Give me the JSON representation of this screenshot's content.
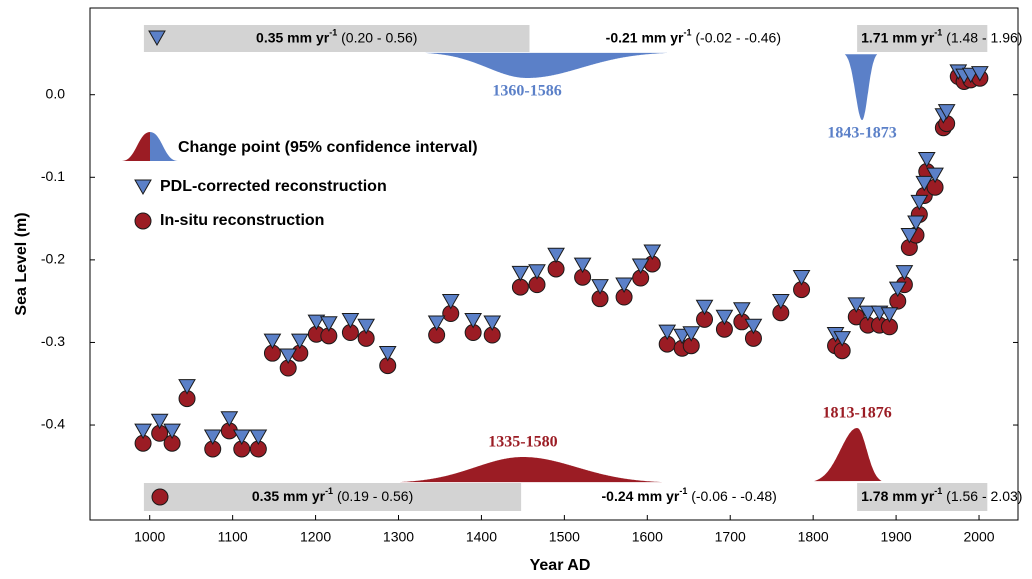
{
  "chart_data": {
    "type": "scatter",
    "xlabel": "Year AD",
    "ylabel": "Sea Level (m)",
    "xlim": [
      928,
      2047
    ],
    "ylim": [
      -0.515,
      0.105
    ],
    "xticks": [
      1000,
      1100,
      1200,
      1300,
      1400,
      1500,
      1600,
      1700,
      1800,
      1900,
      2000
    ],
    "yticks": [
      {
        "value": 0,
        "label": "0.0"
      },
      -0.1,
      -0.2,
      -0.3,
      -0.4
    ],
    "x": [
      992,
      1012,
      1027,
      1045,
      1076,
      1096,
      1111,
      1131,
      1148,
      1167,
      1181,
      1201,
      1216,
      1242,
      1261,
      1287,
      1346,
      1363,
      1390,
      1413,
      1447,
      1467,
      1490,
      1522,
      1543,
      1572,
      1592,
      1606,
      1624,
      1642,
      1653,
      1669,
      1693,
      1714,
      1728,
      1761,
      1786,
      1827,
      1835,
      1852,
      1866,
      1880,
      1892,
      1902,
      1910,
      1916,
      1924,
      1928,
      1934,
      1937,
      1947,
      1957,
      1961,
      1975,
      1982,
      1990,
      2001
    ],
    "series": [
      {
        "name": "In-situ reconstruction",
        "color": "#9b1c24",
        "marker": "circle",
        "values": [
          -0.422,
          -0.41,
          -0.422,
          -0.368,
          -0.429,
          -0.407,
          -0.429,
          -0.429,
          -0.313,
          -0.331,
          -0.313,
          -0.29,
          -0.292,
          -0.288,
          -0.295,
          -0.328,
          -0.291,
          -0.265,
          -0.288,
          -0.291,
          -0.233,
          -0.23,
          -0.211,
          -0.221,
          -0.247,
          -0.245,
          -0.222,
          -0.205,
          -0.302,
          -0.307,
          -0.304,
          -0.272,
          -0.284,
          -0.275,
          -0.295,
          -0.264,
          -0.236,
          -0.304,
          -0.31,
          -0.269,
          -0.279,
          -0.279,
          -0.281,
          -0.25,
          -0.23,
          -0.185,
          -0.17,
          -0.145,
          -0.122,
          -0.093,
          -0.112,
          -0.04,
          -0.035,
          0.022,
          0.016,
          0.018,
          0.02
        ]
      },
      {
        "name": "PDL-corrected reconstruction",
        "color": "#5b80c8",
        "marker": "triangle",
        "values": [
          -0.405,
          -0.393,
          -0.405,
          -0.351,
          -0.412,
          -0.39,
          -0.412,
          -0.412,
          -0.296,
          -0.314,
          -0.296,
          -0.273,
          -0.275,
          -0.271,
          -0.278,
          -0.311,
          -0.274,
          -0.248,
          -0.271,
          -0.274,
          -0.214,
          -0.212,
          -0.192,
          -0.204,
          -0.23,
          -0.228,
          -0.205,
          -0.188,
          -0.285,
          -0.29,
          -0.287,
          -0.255,
          -0.267,
          -0.258,
          -0.278,
          -0.248,
          -0.219,
          -0.288,
          -0.293,
          -0.252,
          -0.262,
          -0.262,
          -0.264,
          -0.233,
          -0.213,
          -0.168,
          -0.153,
          -0.128,
          -0.105,
          -0.076,
          -0.095,
          -0.023,
          -0.018,
          0.03,
          0.025,
          0.026,
          0.028
        ]
      }
    ],
    "legend_change_point": "Change point (95% confidence interval)",
    "change_points": [
      {
        "label": "1360-1586",
        "start": 1360,
        "end": 1586,
        "peak": 1455,
        "color": "#5b80c8",
        "side": "top"
      },
      {
        "label": "1843-1873",
        "start": 1843,
        "end": 1873,
        "peak": 1859,
        "color": "#5b80c8",
        "side": "top"
      },
      {
        "label": "1335-1580",
        "start": 1335,
        "end": 1580,
        "peak": 1450,
        "color": "#9b1c24",
        "side": "bottom"
      },
      {
        "label": "1813-1876",
        "start": 1813,
        "end": 1876,
        "peak": 1853,
        "color": "#9b1c24",
        "side": "bottom"
      }
    ],
    "rate_bars": [
      {
        "side": "top",
        "segments": [
          {
            "start": 993,
            "end": 1458,
            "fill": "#d3d3d3",
            "rate": "0.35 mm yr",
            "sup": "-1",
            "range": " (0.20 - 0.56)"
          },
          {
            "start": 1458,
            "end": 1853,
            "fill": "#ffffff",
            "rate": "-0.21 mm yr",
            "sup": "-1",
            "range": " (-0.02 - -0.46)"
          },
          {
            "start": 1853,
            "end": 2010,
            "fill": "#d3d3d3",
            "rate": "1.71 mm yr",
            "sup": "-1",
            "range": " (1.48 - 1.96)"
          }
        ]
      },
      {
        "side": "bottom",
        "segments": [
          {
            "start": 993,
            "end": 1448,
            "fill": "#d3d3d3",
            "rate": "0.35 mm yr",
            "sup": "-1",
            "range": " (0.19 - 0.56)"
          },
          {
            "start": 1448,
            "end": 1853,
            "fill": "#ffffff",
            "rate": "-0.24 mm yr",
            "sup": "-1",
            "range": " (-0.06 - -0.48)"
          },
          {
            "start": 1853,
            "end": 2010,
            "fill": "#d3d3d3",
            "rate": "1.78 mm yr",
            "sup": "-1",
            "range": " (1.56 - 2.03)"
          }
        ]
      }
    ]
  }
}
